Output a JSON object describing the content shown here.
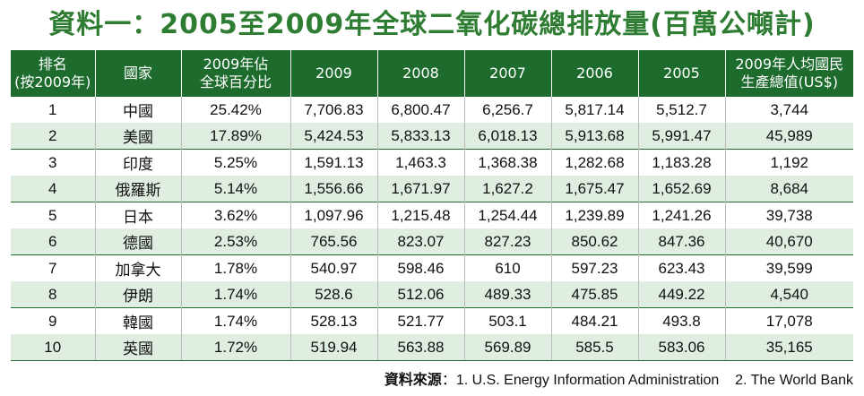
{
  "title": "資料一：2005至2009年全球二氧化碳總排放量(百萬公噸計)",
  "headers": [
    [
      "排名",
      "(按2009年)"
    ],
    [
      "國家",
      ""
    ],
    [
      "2009年佔",
      "全球百分比"
    ],
    [
      "2009",
      ""
    ],
    [
      "2008",
      ""
    ],
    [
      "2007",
      ""
    ],
    [
      "2006",
      ""
    ],
    [
      "2005",
      ""
    ],
    [
      "2009年人均國民",
      "生產總值(US$)"
    ]
  ],
  "rows": [
    [
      "1",
      "中國",
      "25.42%",
      "7,706.83",
      "6,800.47",
      "6,256.7",
      "5,817.14",
      "5,512.7",
      "3,744"
    ],
    [
      "2",
      "美國",
      "17.89%",
      "5,424.53",
      "5,833.13",
      "6,018.13",
      "5,913.68",
      "5,991.47",
      "45,989"
    ],
    [
      "3",
      "印度",
      "5.25%",
      "1,591.13",
      "1,463.3",
      "1,368.38",
      "1,282.68",
      "1,183.28",
      "1,192"
    ],
    [
      "4",
      "俄羅斯",
      "5.14%",
      "1,556.66",
      "1,671.97",
      "1,627.2",
      "1,675.47",
      "1,652.69",
      "8,684"
    ],
    [
      "5",
      "日本",
      "3.62%",
      "1,097.96",
      "1,215.48",
      "1,254.44",
      "1,239.89",
      "1,241.26",
      "39,738"
    ],
    [
      "6",
      "德國",
      "2.53%",
      "765.56",
      "823.07",
      "827.23",
      "850.62",
      "847.36",
      "40,670"
    ],
    [
      "7",
      "加拿大",
      "1.78%",
      "540.97",
      "598.46",
      "610",
      "597.23",
      "623.43",
      "39,599"
    ],
    [
      "8",
      "伊朗",
      "1.74%",
      "528.6",
      "512.06",
      "489.33",
      "475.85",
      "449.22",
      "4,540"
    ],
    [
      "9",
      "韓國",
      "1.74%",
      "528.13",
      "521.77",
      "503.1",
      "484.21",
      "493.8",
      "17,078"
    ],
    [
      "10",
      "英國",
      "1.72%",
      "519.94",
      "563.88",
      "569.89",
      "585.5",
      "583.06",
      "35,165"
    ]
  ],
  "source": {
    "label": "資料來源",
    "text": "：1. U.S. Energy Information Administration    2. The World Bank"
  },
  "colors": {
    "header_bg": "#1e6b2e",
    "title": "#2e7d32",
    "stripe": "#dfeee0"
  }
}
